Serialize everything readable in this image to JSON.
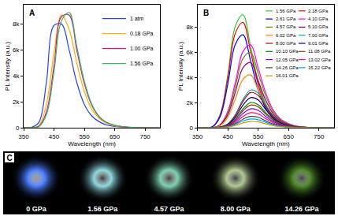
{
  "chart_data": [
    {
      "type": "line",
      "label": "A",
      "xlabel": "Wavelength (nm)",
      "ylabel": "PL Intensity (a.u.)",
      "xlim": [
        350,
        800
      ],
      "xticks": [
        350,
        450,
        550,
        650,
        750
      ],
      "ylim": [
        0,
        9500
      ],
      "yticks": [
        0,
        {
          "value": 2000,
          "label": "2k"
        },
        {
          "value": 4000,
          "label": "4k"
        },
        {
          "value": 6000,
          "label": "6k"
        },
        {
          "value": 8000,
          "label": "8k"
        }
      ],
      "legend": "upper right",
      "grid": false,
      "x": [
        350,
        375,
        400,
        425,
        450,
        475,
        500,
        525,
        550,
        575,
        600,
        625,
        650,
        675,
        700,
        725,
        750,
        775,
        800
      ],
      "series": [
        {
          "name": "1 atm",
          "color": "#2340ff",
          "values": [
            0,
            20,
            400,
            3500,
            7900,
            8000,
            6000,
            3500,
            1800,
            900,
            450,
            200,
            100,
            50,
            20,
            10,
            0,
            0,
            0
          ]
        },
        {
          "name": "0.18 GPa",
          "color": "#ffb000",
          "values": [
            0,
            10,
            150,
            1800,
            5800,
            8700,
            7600,
            5000,
            2800,
            1400,
            700,
            320,
            150,
            70,
            30,
            10,
            0,
            0,
            0
          ]
        },
        {
          "name": "1.00 GPa",
          "color": "#e0107a",
          "values": [
            0,
            5,
            100,
            1200,
            4800,
            8600,
            8700,
            6000,
            3400,
            1700,
            800,
            380,
            180,
            80,
            30,
            10,
            0,
            0,
            0
          ]
        },
        {
          "name": "1.56 GPa",
          "color": "#33b860",
          "values": [
            0,
            5,
            80,
            1000,
            4300,
            8300,
            8900,
            6300,
            3600,
            1800,
            850,
            400,
            190,
            90,
            35,
            10,
            0,
            0,
            0
          ]
        }
      ]
    },
    {
      "type": "line",
      "label": "B",
      "xlabel": "Wavelength (nm)",
      "ylabel": "PL Intensity (a.u.)",
      "xlim": [
        350,
        800
      ],
      "xticks": [
        350,
        450,
        550,
        650,
        750
      ],
      "ylim": [
        0,
        9800
      ],
      "yticks": [
        0,
        {
          "value": 2000,
          "label": "2k"
        },
        {
          "value": 4000,
          "label": "4k"
        },
        {
          "value": 6000,
          "label": "6k"
        },
        {
          "value": 8000,
          "label": "8k"
        }
      ],
      "legend": "upper right",
      "grid": false,
      "x": [
        350,
        375,
        400,
        425,
        450,
        475,
        500,
        525,
        550,
        575,
        600,
        625,
        650,
        675,
        700,
        725,
        750,
        775,
        800
      ],
      "series": [
        {
          "name": "1.56 GPa",
          "color": "#33cc33",
          "values": [
            0,
            0,
            90,
            1080,
            4230,
            8100,
            9000,
            6480,
            3690,
            1890,
            900,
            450,
            180,
            90,
            0,
            0,
            0,
            0,
            0
          ]
        },
        {
          "name": "2.18 GPa",
          "color": "#ff0000",
          "values": [
            0,
            0,
            84,
            1010,
            3950,
            7560,
            8400,
            6050,
            3440,
            1760,
            840,
            420,
            170,
            80,
            0,
            0,
            0,
            0,
            0
          ]
        },
        {
          "name": "2.61 GPa",
          "color": "#0000ff",
          "values": [
            0,
            0,
            74,
            890,
            3480,
            6660,
            7400,
            5330,
            3030,
            1550,
            740,
            370,
            150,
            70,
            0,
            0,
            0,
            0,
            0
          ]
        },
        {
          "name": "4.10 GPa",
          "color": "#ff00ff",
          "values": [
            0,
            0,
            0,
            260,
            1320,
            3630,
            6070,
            6600,
            4750,
            2770,
            1390,
            660,
            330,
            130,
            70,
            0,
            0,
            0,
            0
          ]
        },
        {
          "name": "4.57 GPa",
          "color": "#808000",
          "values": [
            0,
            0,
            0,
            240,
            1200,
            3300,
            5520,
            6000,
            4320,
            2520,
            1260,
            600,
            300,
            120,
            60,
            0,
            0,
            0,
            0
          ]
        },
        {
          "name": "5.10 GPa",
          "color": "#800080",
          "values": [
            0,
            0,
            0,
            210,
            1040,
            2860,
            4780,
            5200,
            3740,
            2180,
            1090,
            520,
            260,
            100,
            50,
            0,
            0,
            0,
            0
          ]
        },
        {
          "name": "6.02 GPa",
          "color": "#ff8000",
          "values": [
            0,
            0,
            0,
            170,
            840,
            2310,
            3860,
            4200,
            3020,
            1760,
            880,
            420,
            210,
            80,
            40,
            0,
            0,
            0,
            0
          ]
        },
        {
          "name": "7.00 GPa",
          "color": "#00b0b0",
          "values": [
            0,
            0,
            0,
            60,
            300,
            1050,
            2250,
            3000,
            2760,
            1800,
            960,
            450,
            210,
            90,
            30,
            0,
            0,
            0,
            0
          ]
        },
        {
          "name": "8.00 GPa",
          "color": "#c00000",
          "values": [
            0,
            0,
            0,
            56,
            280,
            980,
            2100,
            2800,
            2580,
            1680,
            900,
            420,
            200,
            80,
            30,
            0,
            0,
            0,
            0
          ]
        },
        {
          "name": "9.01 GPa",
          "color": "#000080",
          "values": [
            0,
            0,
            0,
            48,
            240,
            840,
            1800,
            2400,
            2210,
            1440,
            770,
            360,
            170,
            70,
            20,
            0,
            0,
            0,
            0
          ]
        },
        {
          "name": "10.10 GPa",
          "color": "#008000",
          "values": [
            0,
            0,
            0,
            40,
            200,
            700,
            1500,
            2000,
            1840,
            1200,
            640,
            300,
            140,
            60,
            20,
            0,
            0,
            0,
            0
          ]
        },
        {
          "name": "11.08 GPa",
          "color": "#804000",
          "values": [
            0,
            0,
            0,
            36,
            180,
            630,
            1350,
            1800,
            1660,
            1080,
            580,
            270,
            130,
            50,
            20,
            0,
            0,
            0,
            0
          ]
        },
        {
          "name": "12.05 GPa",
          "color": "#8000ff",
          "values": [
            0,
            0,
            0,
            30,
            150,
            530,
            1130,
            1500,
            1380,
            900,
            480,
            230,
            110,
            50,
            20,
            0,
            0,
            0,
            0
          ]
        },
        {
          "name": "13.02 GPa",
          "color": "#ff0080",
          "values": [
            0,
            0,
            0,
            24,
            120,
            420,
            900,
            1200,
            1100,
            720,
            380,
            180,
            80,
            40,
            10,
            0,
            0,
            0,
            0
          ]
        },
        {
          "name": "14.26 GPa",
          "color": "#404040",
          "values": [
            0,
            0,
            0,
            18,
            90,
            320,
            680,
            900,
            830,
            540,
            290,
            140,
            60,
            30,
            10,
            0,
            0,
            0,
            0
          ]
        },
        {
          "name": "15.22 GPa",
          "color": "#00a0ff",
          "values": [
            0,
            0,
            0,
            14,
            70,
            250,
            530,
            700,
            640,
            420,
            220,
            110,
            50,
            20,
            10,
            0,
            0,
            0,
            0
          ]
        },
        {
          "name": "16.01 GPa",
          "color": "#c0a000",
          "values": [
            0,
            0,
            0,
            10,
            50,
            180,
            380,
            500,
            460,
            300,
            160,
            80,
            40,
            20,
            10,
            0,
            0,
            0,
            0
          ]
        }
      ]
    }
  ],
  "photo_panel": {
    "label": "C",
    "items": [
      {
        "label": "0 GPa",
        "color": "#4a7dff"
      },
      {
        "label": "1.56 GPa",
        "color": "#8fd8e0"
      },
      {
        "label": "4.57 GPa",
        "color": "#7fd0b0"
      },
      {
        "label": "8.00 GPa",
        "color": "#b0c890"
      },
      {
        "label": "14.26 GPa",
        "color": "#4f8a2a"
      }
    ]
  }
}
